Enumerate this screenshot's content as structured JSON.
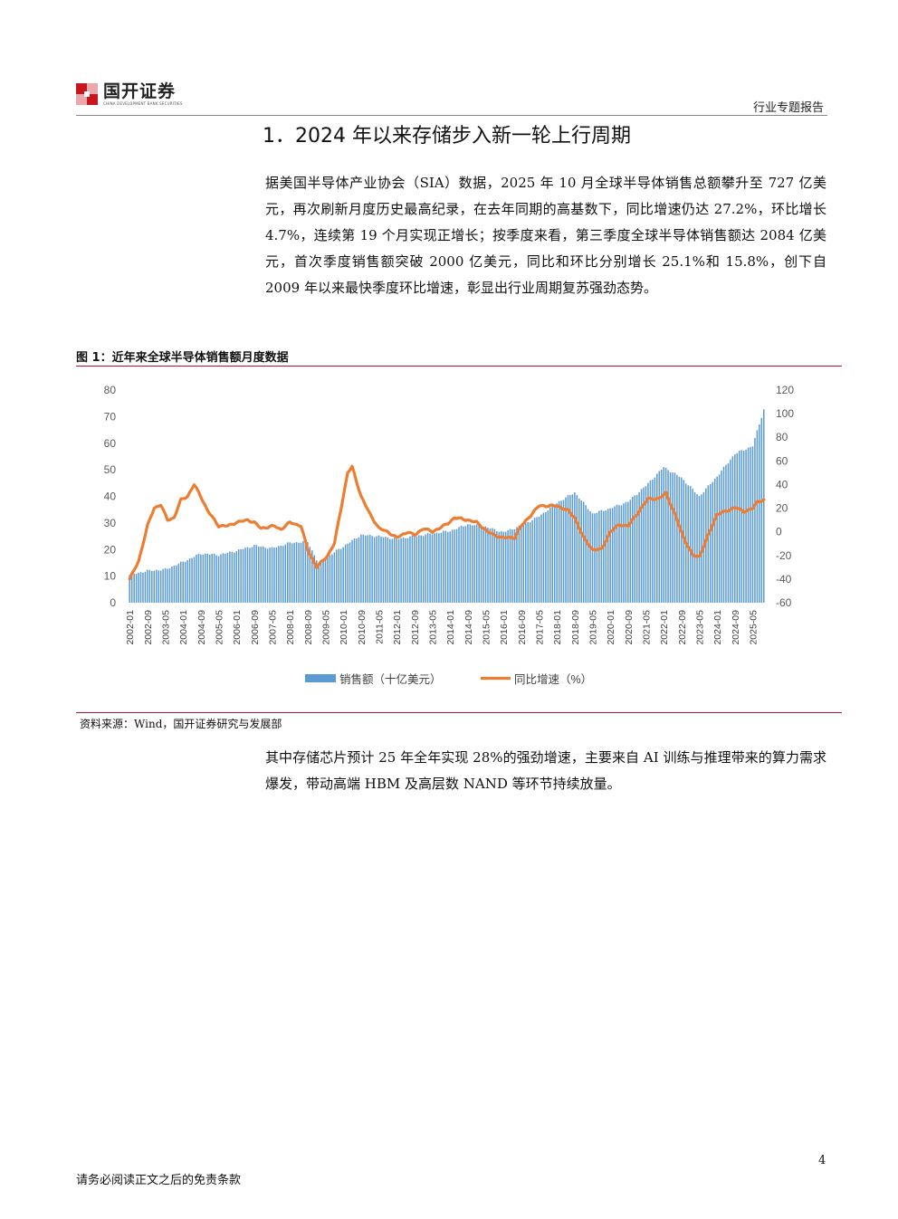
{
  "header": {
    "logo_name": "国开证券",
    "logo_sub": "CHINA DEVELOPMENT BANK SECURITIES",
    "report_type": "行业专题报告"
  },
  "section_title": "1．2024 年以来存储步入新一轮上行周期",
  "paragraphs": [
    "据美国半导体产业协会（SIA）数据，2025 年 10 月全球半导体销售总额攀升至 727 亿美元，再次刷新月度历史最高纪录，在去年同期的高基数下，同比增速仍达 27.2%，环比增长 4.7%，连续第 19 个月实现正增长；按季度来看，第三季度全球半导体销售额达 2084 亿美元，首次季度销售额突破 2000 亿美元，同比和环比分别增长 25.1%和 15.8%，创下自 2009 年以来最快季度环比增速，彰显出行业周期复苏强劲态势。",
    "其中存储芯片预计 25 年全年实现 28%的强劲增速，主要来自 AI 训练与推理带来的算力需求爆发，带动高端 HBM 及高层数 NAND 等环节持续放量。"
  ],
  "figure": {
    "title": "图 1：近年来全球半导体销售额月度数据",
    "source": "资料来源：Wind，国开证券研究与发展部"
  },
  "chart_data": {
    "type": "bar",
    "title": "",
    "left_axis": {
      "ylim": [
        0,
        80
      ],
      "ticks": [
        "0",
        "10",
        "20",
        "30",
        "40",
        "50",
        "60",
        "70",
        "80"
      ]
    },
    "right_axis": {
      "ylim": [
        -60,
        120
      ],
      "ticks": [
        "-60",
        "-40",
        "-20",
        "0",
        "20",
        "40",
        "60",
        "80",
        "100",
        "120"
      ]
    },
    "x_tick_labels": [
      "2002-01",
      "2002-09",
      "2003-05",
      "2004-01",
      "2004-09",
      "2005-05",
      "2006-01",
      "2006-09",
      "2007-05",
      "2008-01",
      "2008-09",
      "2009-05",
      "2010-01",
      "2010-09",
      "2011-05",
      "2012-01",
      "2012-09",
      "2013-05",
      "2014-01",
      "2014-09",
      "2015-05",
      "2016-01",
      "2016-09",
      "2017-05",
      "2018-01",
      "2018-09",
      "2019-05",
      "2020-01",
      "2020-09",
      "2021-05",
      "2022-01",
      "2022-09",
      "2023-05",
      "2024-01",
      "2024-09",
      "2025-05"
    ],
    "x_start": "2002-01",
    "x_end": "2025-10",
    "series": [
      {
        "name": "销售额（十亿美元）",
        "type": "bar",
        "axis": "left",
        "color": "#5b9bd5",
        "anchors": [
          [
            "2002-01",
            10.5
          ],
          [
            "2002-09",
            12
          ],
          [
            "2003-05",
            12.5
          ],
          [
            "2003-12",
            15
          ],
          [
            "2004-09",
            18.5
          ],
          [
            "2005-05",
            18
          ],
          [
            "2006-01",
            19.5
          ],
          [
            "2006-09",
            21.5
          ],
          [
            "2007-05",
            20.5
          ],
          [
            "2008-01",
            22.5
          ],
          [
            "2008-09",
            23
          ],
          [
            "2009-02",
            14.5
          ],
          [
            "2009-09",
            19
          ],
          [
            "2010-09",
            25.5
          ],
          [
            "2011-05",
            25
          ],
          [
            "2012-01",
            24
          ],
          [
            "2012-09",
            25
          ],
          [
            "2013-05",
            26
          ],
          [
            "2014-01",
            27
          ],
          [
            "2014-09",
            29.5
          ],
          [
            "2015-05",
            28.5
          ],
          [
            "2016-01",
            26.5
          ],
          [
            "2016-09",
            29
          ],
          [
            "2017-05",
            32.5
          ],
          [
            "2018-01",
            37.5
          ],
          [
            "2018-09",
            41.5
          ],
          [
            "2019-05",
            33.5
          ],
          [
            "2020-01",
            35.5
          ],
          [
            "2020-09",
            38
          ],
          [
            "2021-05",
            44
          ],
          [
            "2022-01",
            51
          ],
          [
            "2022-09",
            47
          ],
          [
            "2023-05",
            40
          ],
          [
            "2024-01",
            47.5
          ],
          [
            "2024-09",
            56
          ],
          [
            "2025-05",
            59
          ],
          [
            "2025-10",
            72.7
          ]
        ]
      },
      {
        "name": "同比增速（%）",
        "type": "line",
        "axis": "right",
        "color": "#ed7d31",
        "anchors": [
          [
            "2002-01",
            -40
          ],
          [
            "2002-05",
            -25
          ],
          [
            "2002-09",
            5
          ],
          [
            "2002-12",
            20
          ],
          [
            "2003-03",
            23
          ],
          [
            "2003-06",
            10
          ],
          [
            "2003-09",
            12
          ],
          [
            "2003-12",
            27
          ],
          [
            "2004-03",
            30
          ],
          [
            "2004-06",
            40
          ],
          [
            "2004-09",
            30
          ],
          [
            "2004-12",
            18
          ],
          [
            "2005-05",
            5
          ],
          [
            "2005-09",
            5
          ],
          [
            "2006-01",
            8
          ],
          [
            "2006-06",
            10
          ],
          [
            "2006-09",
            8
          ],
          [
            "2006-12",
            3
          ],
          [
            "2007-06",
            5
          ],
          [
            "2007-09",
            2
          ],
          [
            "2008-01",
            8
          ],
          [
            "2008-06",
            5
          ],
          [
            "2008-09",
            -15
          ],
          [
            "2009-01",
            -30
          ],
          [
            "2009-06",
            -20
          ],
          [
            "2009-09",
            -10
          ],
          [
            "2009-12",
            20
          ],
          [
            "2010-03",
            50
          ],
          [
            "2010-05",
            55
          ],
          [
            "2010-09",
            30
          ],
          [
            "2011-01",
            15
          ],
          [
            "2011-05",
            3
          ],
          [
            "2011-09",
            0
          ],
          [
            "2012-01",
            -5
          ],
          [
            "2012-06",
            0
          ],
          [
            "2012-09",
            -3
          ],
          [
            "2013-01",
            3
          ],
          [
            "2013-05",
            0
          ],
          [
            "2013-12",
            7
          ],
          [
            "2014-03",
            12
          ],
          [
            "2014-09",
            10
          ],
          [
            "2015-01",
            8
          ],
          [
            "2015-06",
            0
          ],
          [
            "2015-09",
            -3
          ],
          [
            "2016-01",
            -5
          ],
          [
            "2016-06",
            -5
          ],
          [
            "2016-09",
            5
          ],
          [
            "2017-05",
            22
          ],
          [
            "2017-09",
            22
          ],
          [
            "2018-01",
            22
          ],
          [
            "2018-06",
            18
          ],
          [
            "2018-09",
            12
          ],
          [
            "2019-01",
            -5
          ],
          [
            "2019-05",
            -15
          ],
          [
            "2019-09",
            -15
          ],
          [
            "2020-01",
            0
          ],
          [
            "2020-05",
            6
          ],
          [
            "2020-09",
            5
          ],
          [
            "2021-01",
            15
          ],
          [
            "2021-06",
            28
          ],
          [
            "2021-11",
            28
          ],
          [
            "2022-02",
            33
          ],
          [
            "2022-06",
            15
          ],
          [
            "2022-10",
            -5
          ],
          [
            "2023-02",
            -20
          ],
          [
            "2023-05",
            -21
          ],
          [
            "2023-09",
            -3
          ],
          [
            "2024-01",
            15
          ],
          [
            "2024-06",
            18
          ],
          [
            "2024-09",
            21
          ],
          [
            "2025-01",
            17
          ],
          [
            "2025-05",
            20
          ],
          [
            "2025-07",
            25
          ],
          [
            "2025-10",
            27.2
          ]
        ]
      }
    ],
    "legend_position": "bottom",
    "grid": false
  },
  "footer": {
    "page_number": "4",
    "disclaimer": "请务必阅读正文之后的免责条款"
  }
}
